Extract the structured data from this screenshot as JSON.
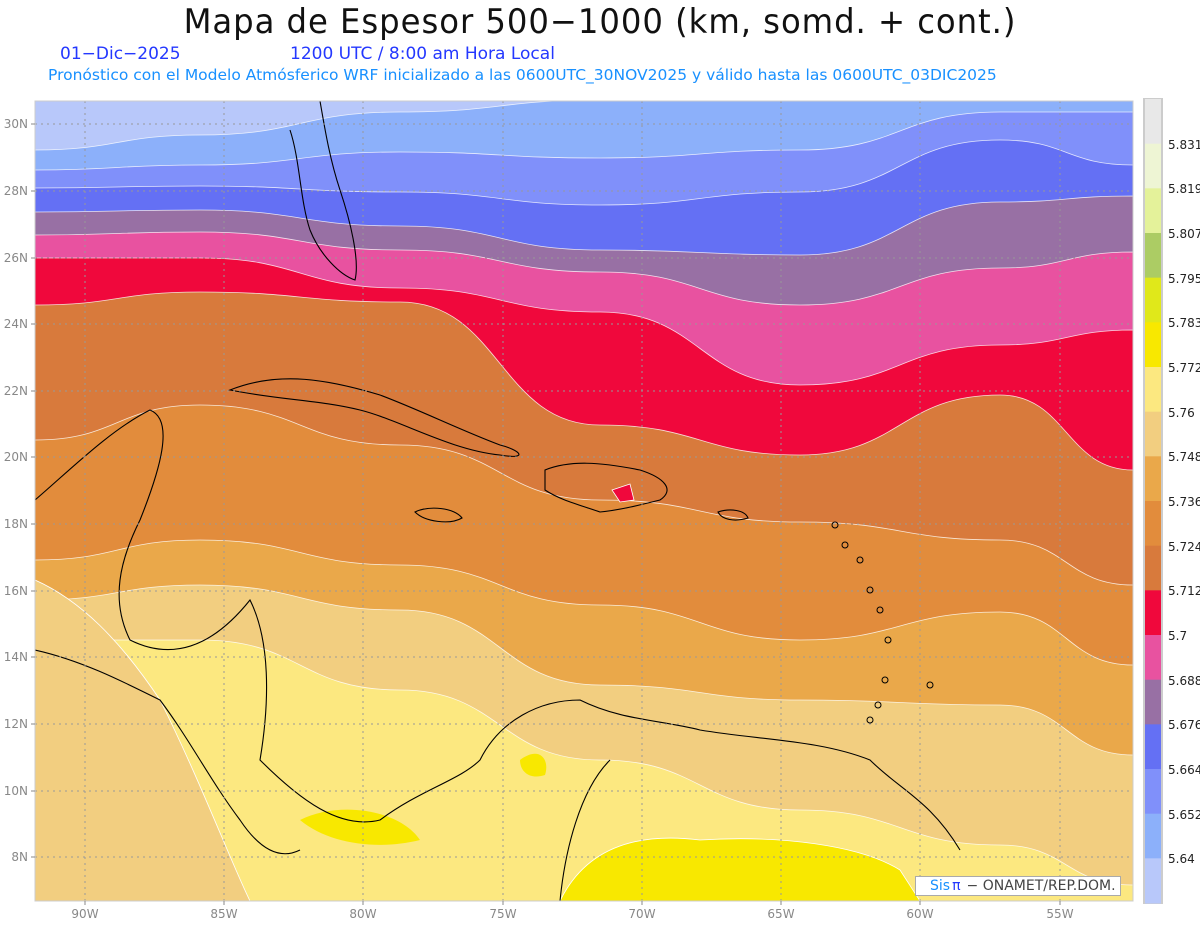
{
  "header": {
    "title": "Mapa de Espesor 500−1000 (km, somd. + cont.)",
    "date": "01−Dic−2025",
    "time": "1200 UTC / 8:00 am Hora Local",
    "info": "Pronóstico con el Modelo Atmósferico WRF inicializado a las 0600UTC_30NOV2025 y válido hasta las  0600UTC_03DIC2025"
  },
  "axes": {
    "lon_labels": [
      "90W",
      "85W",
      "80W",
      "75W",
      "70W",
      "65W",
      "60W",
      "55W"
    ],
    "lat_labels": [
      "30N",
      "28N",
      "26N",
      "24N",
      "22N",
      "20N",
      "18N",
      "16N",
      "14N",
      "12N",
      "10N",
      "8N"
    ]
  },
  "colorbar": {
    "colors": [
      "#e8e8e8",
      "#eef5d4",
      "#e4f29a",
      "#accc64",
      "#e0e81a",
      "#f8e800",
      "#fce880",
      "#f2ce80",
      "#eaa84a",
      "#e28c3c",
      "#d87a3c",
      "#f0083c",
      "#e852a0",
      "#9870a4",
      "#6470f4",
      "#8090fa",
      "#8cb0fa",
      "#b8c8fa"
    ],
    "labels": [
      "5.831",
      "5.819",
      "5.807",
      "5.795",
      "5.783",
      "5.772",
      "5.76",
      "5.748",
      "5.736",
      "5.724",
      "5.712",
      "5.7",
      "5.688",
      "5.676",
      "5.664",
      "5.652",
      "5.64"
    ]
  },
  "credit": {
    "sis": "Sis",
    "pi": "π",
    "text": "− ONAMET/REP.DOM."
  }
}
